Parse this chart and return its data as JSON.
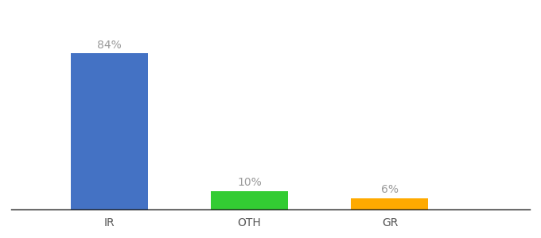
{
  "categories": [
    "IR",
    "OTH",
    "GR"
  ],
  "values": [
    84,
    10,
    6
  ],
  "bar_colors": [
    "#4472c4",
    "#33cc33",
    "#ffaa00"
  ],
  "labels": [
    "84%",
    "10%",
    "6%"
  ],
  "ylim": [
    0,
    100
  ],
  "label_color": "#999999",
  "label_fontsize": 10,
  "tick_label_color": "#555555",
  "tick_fontsize": 10,
  "background_color": "#ffffff",
  "bar_width": 0.55,
  "x_positions": [
    1,
    2,
    3
  ],
  "xlim": [
    0.3,
    4.0
  ]
}
